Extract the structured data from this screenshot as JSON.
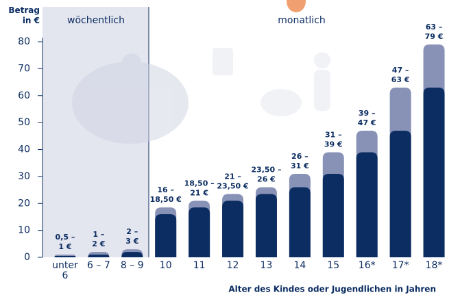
{
  "chart_data": {
    "type": "bar",
    "barmode": "overlay",
    "y_label": "Betrag in €",
    "x_label": "Alter des Kindes oder Jugendlichen in Jahren",
    "sections": [
      {
        "label": "wöchentlich"
      },
      {
        "label": "monatlich"
      }
    ],
    "categories": [
      "unter 6",
      "6 – 7",
      "8 – 9",
      "10",
      "11",
      "12",
      "13",
      "14",
      "15",
      "16*",
      "17*",
      "18*"
    ],
    "series": [
      {
        "color": "#8891b6",
        "values": [
          1,
          2,
          3,
          18.5,
          21,
          23.5,
          26,
          31,
          39,
          47,
          63,
          79
        ],
        "value_labels": [
          "1 €",
          "2 €",
          "3 €",
          "18,50 €",
          "21 €",
          "23,50 €",
          "26 €",
          "31 €",
          "39 €",
          "47 €",
          "63 €",
          "79 €"
        ]
      },
      {
        "color": "#0c2d62",
        "values": [
          0.5,
          1,
          2,
          16,
          18.5,
          21,
          23.5,
          26,
          31,
          39,
          47,
          63
        ],
        "value_labels": [
          "0,5 –",
          "1 –",
          "2 –",
          "16 –",
          "18,50 –",
          "21 –",
          "23,50 –",
          "26 –",
          "31 –",
          "39 –",
          "47 –",
          "63 –"
        ]
      }
    ],
    "ylim": [
      0,
      80
    ],
    "yticks": [
      0,
      10,
      20,
      30,
      40,
      50,
      60,
      70,
      80
    ]
  }
}
